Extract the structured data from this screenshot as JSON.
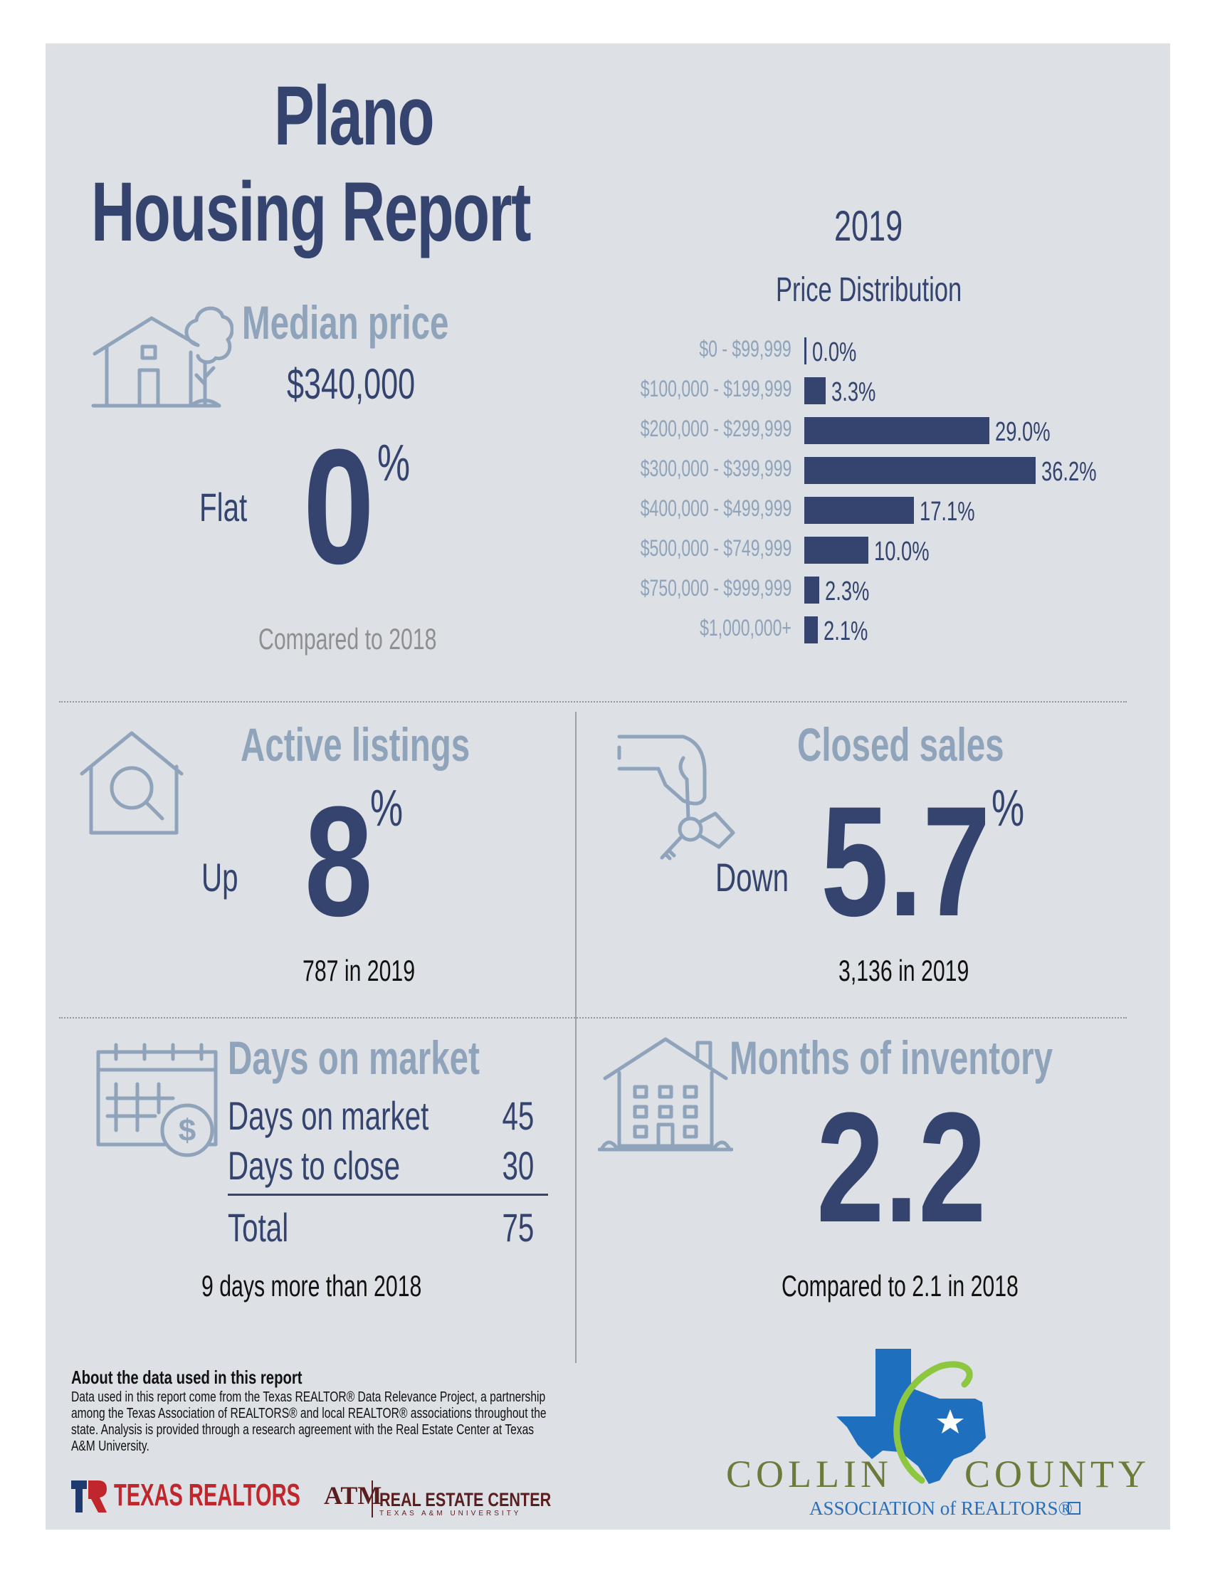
{
  "header": {
    "title_line1": "Plano",
    "title_line2": "Housing Report",
    "year": "2019"
  },
  "median_price": {
    "heading": "Median price",
    "value": "$340,000",
    "direction": "Flat",
    "change": "0",
    "percent_sign": "%",
    "comparison": "Compared to 2018"
  },
  "chart_data": {
    "type": "bar",
    "title": "Price Distribution",
    "categories": [
      "$0 - $99,999",
      "$100,000 - $199,999",
      "$200,000 - $299,999",
      "$300,000 - $399,999",
      "$400,000 - $499,999",
      "$500,000 - $749,999",
      "$750,000 - $999,999",
      "$1,000,000+"
    ],
    "values": [
      0.0,
      3.3,
      29.0,
      36.2,
      17.1,
      10.0,
      2.3,
      2.1
    ],
    "value_labels": [
      "0.0%",
      "3.3%",
      "29.0%",
      "36.2%",
      "17.1%",
      "10.0%",
      "2.3%",
      "2.1%"
    ],
    "orientation": "horizontal",
    "grid": false
  },
  "active_listings": {
    "heading": "Active listings",
    "direction": "Up",
    "change": "8",
    "percent_sign": "%",
    "caption": "787 in 2019"
  },
  "closed_sales": {
    "heading": "Closed sales",
    "direction": "Down",
    "change": "5.7",
    "percent_sign": "%",
    "caption": "3,136 in 2019"
  },
  "days_on_market": {
    "heading": "Days on market",
    "rows": [
      {
        "label": "Days on market",
        "value": "45"
      },
      {
        "label": "Days to close",
        "value": "30"
      }
    ],
    "total_label": "Total",
    "total_value": "75",
    "caption": "9 days more than 2018"
  },
  "months_inventory": {
    "heading": "Months of inventory",
    "value": "2.2",
    "caption": "Compared to 2.1 in 2018"
  },
  "about": {
    "title": "About the data used in this report",
    "body": "Data used in this report come from the Texas REALTOR® Data Relevance Project, a partnership among the Texas Association of REALTORS® and local REALTOR® associations throughout the state. Analysis is provided through a research agreement with the Real Estate Center at Texas A&M University."
  },
  "logos": {
    "texas_realtors": "TEXAS REALTORS",
    "atm": "ATM",
    "real_estate_center": "REAL ESTATE CENTER",
    "real_estate_center_sub": "TEXAS A&M UNIVERSITY",
    "collin_county_left": "COLLIN",
    "collin_county_right": "COUNTY",
    "collin_county_sub": "ASSOCIATION of REALTORS®"
  },
  "colors": {
    "navy": "#34446e",
    "steel": "#8fa3ba",
    "background": "#dde0e5",
    "texas_blue": "#1f6fbf",
    "lime": "#8dc63f",
    "texas_red": "#c0272d"
  }
}
